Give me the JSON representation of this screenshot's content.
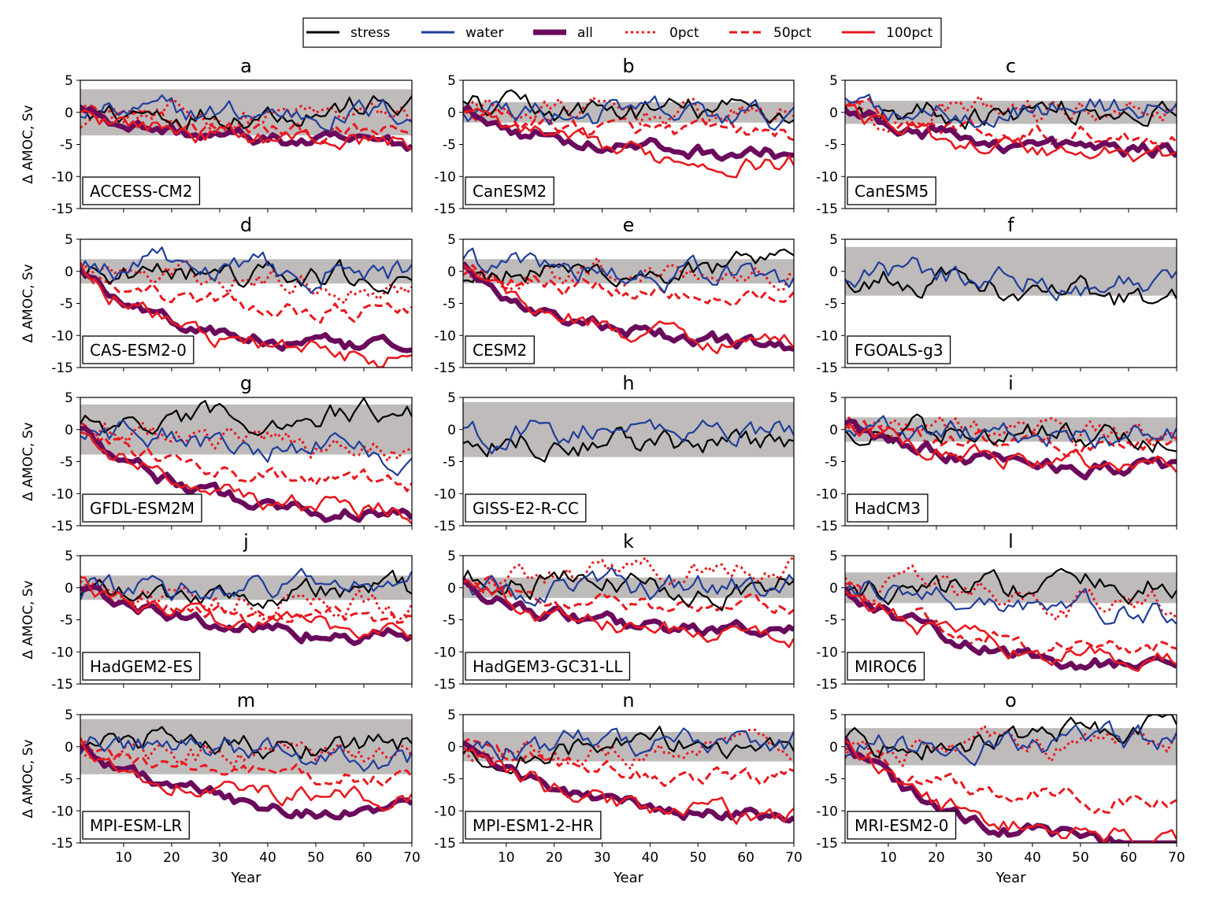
{
  "legend": {
    "items": [
      {
        "label": "stress",
        "style": "solid-black"
      },
      {
        "label": "water",
        "style": "solid-blue"
      },
      {
        "label": "all",
        "style": "thick-purple"
      },
      {
        "label": "0pct",
        "style": "dotted-red"
      },
      {
        "label": "50pct",
        "style": "dashed-red"
      },
      {
        "label": "100pct",
        "style": "solid-red"
      }
    ]
  },
  "colors": {
    "stress": "#000000",
    "water": "#1f3e9a",
    "all": "#6b0a5c",
    "red": "#e8191f",
    "band": "#bfbbbb"
  },
  "chart_data": {
    "type": "line",
    "ylabel": "Δ AMOC, Sv",
    "xlabel": "Year",
    "xlim": [
      1,
      70
    ],
    "ylim": [
      -15,
      5
    ],
    "xticks": [
      10,
      20,
      30,
      40,
      50,
      60,
      70
    ],
    "yticks": [
      5,
      0,
      -5,
      -10,
      -15
    ],
    "panels": [
      {
        "letter": "a",
        "model": "ACCESS-CM2",
        "band": [
          -3.6,
          3.6
        ],
        "endpoints": {
          "stress": 1.0,
          "water": 0.0,
          "all": -5.0,
          "p0": -0.5,
          "p50": -3.5,
          "p100": -4.5
        }
      },
      {
        "letter": "b",
        "model": "CanESM2",
        "band": [
          -1.6,
          1.6
        ],
        "endpoints": {
          "stress": 0.0,
          "water": -1.0,
          "all": -6.5,
          "p0": -0.5,
          "p50": -3.5,
          "p100": -7.8
        }
      },
      {
        "letter": "c",
        "model": "CanESM5",
        "band": [
          -1.8,
          1.8
        ],
        "endpoints": {
          "stress": 0.5,
          "water": 1.0,
          "all": -6.0,
          "p0": 0.5,
          "p50": -3.5,
          "p100": -6.5
        }
      },
      {
        "letter": "d",
        "model": "CAS-ESM2-0",
        "band": [
          -1.9,
          1.9
        ],
        "endpoints": {
          "stress": -1.5,
          "water": -0.5,
          "all": -12.5,
          "p0": -2.5,
          "p50": -6.5,
          "p100": -13.5
        }
      },
      {
        "letter": "e",
        "model": "CESM2",
        "band": [
          -1.9,
          1.9
        ],
        "endpoints": {
          "stress": 0.5,
          "water": -1.0,
          "all": -11.5,
          "p0": 0.5,
          "p50": -3.5,
          "p100": -11.0
        }
      },
      {
        "letter": "f",
        "model": "FGOALS-g3",
        "band": [
          -3.8,
          3.8
        ],
        "endpoints": {
          "stress": -5.0,
          "water": -2.5
        }
      },
      {
        "letter": "g",
        "model": "GFDL-ESM2M",
        "band": [
          -3.9,
          3.9
        ],
        "endpoints": {
          "stress": 3.0,
          "water": -3.5,
          "all": -13.5,
          "p0": -3.0,
          "p50": -8.5,
          "p100": -12.5
        }
      },
      {
        "letter": "h",
        "model": "GISS-E2-R-CC",
        "band": [
          -4.3,
          4.3
        ],
        "endpoints": {
          "stress": -3.0,
          "water": 0.5
        }
      },
      {
        "letter": "i",
        "model": "HadCM3",
        "band": [
          -1.9,
          1.9
        ],
        "endpoints": {
          "stress": -1.5,
          "water": -1.0,
          "all": -6.0,
          "p0": -1.0,
          "p50": -2.5,
          "p100": -5.5
        }
      },
      {
        "letter": "j",
        "model": "HadGEM2-ES",
        "band": [
          -1.9,
          1.9
        ],
        "endpoints": {
          "stress": -0.5,
          "water": 1.0,
          "all": -7.5,
          "p0": -3.0,
          "p50": -5.5,
          "p100": -6.5
        }
      },
      {
        "letter": "k",
        "model": "HadGEM3-GC31-LL",
        "band": [
          -1.6,
          1.6
        ],
        "endpoints": {
          "stress": 0.0,
          "water": 0.5,
          "all": -7.0,
          "p0": 4.5,
          "p50": -3.5,
          "p100": -7.5
        }
      },
      {
        "letter": "l",
        "model": "MIROC6",
        "band": [
          -2.4,
          2.4
        ],
        "endpoints": {
          "stress": 0.5,
          "water": -4.5,
          "all": -12.5,
          "p0": -3.0,
          "p50": -9.5,
          "p100": -11.5
        }
      },
      {
        "letter": "m",
        "model": "MPI-ESM-LR",
        "band": [
          -4.3,
          4.3
        ],
        "endpoints": {
          "stress": 0.5,
          "water": -1.5,
          "all": -10.5,
          "p0": -2.0,
          "p50": -5.0,
          "p100": -8.5
        }
      },
      {
        "letter": "n",
        "model": "MPI-ESM1-2-HR",
        "band": [
          -2.3,
          2.3
        ],
        "endpoints": {
          "stress": 0.5,
          "water": 1.5,
          "all": -11.0,
          "p0": 0.0,
          "p50": -5.0,
          "p100": -11.0
        }
      },
      {
        "letter": "o",
        "model": "MRI-ESM2-0",
        "band": [
          -2.9,
          2.9
        ],
        "endpoints": {
          "stress": 3.5,
          "water": 1.0,
          "all": -15.5,
          "p0": 1.0,
          "p50": -8.5,
          "p100": -14.5
        }
      }
    ]
  }
}
